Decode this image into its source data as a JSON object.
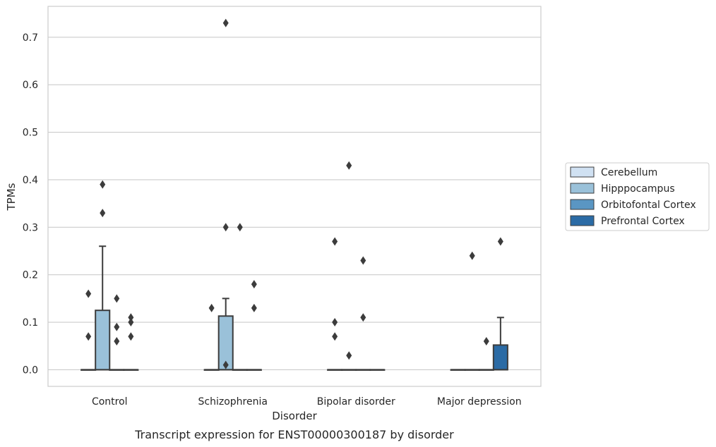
{
  "chart_data": {
    "type": "box",
    "title": "",
    "caption": "Transcript expression for ENST00000300187 by disorder",
    "xlabel": "Disorder",
    "ylabel": "TPMs",
    "ylim": [
      -0.035,
      0.765
    ],
    "yticks": [
      "0.0",
      "0.1",
      "0.2",
      "0.3",
      "0.4",
      "0.5",
      "0.6",
      "0.7"
    ],
    "categories": [
      "Control",
      "Schizophrenia",
      "Bipolar disorder",
      "Major depression"
    ],
    "grid": true,
    "legend_position": "right",
    "series": [
      {
        "name": "Cerebellum",
        "color": "#d0e1f2",
        "boxes": [
          {
            "q1": 0,
            "median": 0,
            "q3": 0,
            "whisker_low": 0,
            "whisker_high": 0,
            "outliers": [
              0.16,
              0.07
            ]
          },
          {
            "q1": 0,
            "median": 0,
            "q3": 0,
            "whisker_low": 0,
            "whisker_high": 0,
            "outliers": [
              0.13
            ]
          },
          {
            "q1": 0,
            "median": 0,
            "q3": 0,
            "whisker_low": 0,
            "whisker_high": 0,
            "outliers": [
              0.27,
              0.1,
              0.07
            ]
          },
          {
            "q1": 0,
            "median": 0,
            "q3": 0,
            "whisker_low": 0,
            "whisker_high": 0,
            "outliers": []
          }
        ]
      },
      {
        "name": "Hipppocampus",
        "color": "#9ac1d9",
        "boxes": [
          {
            "q1": 0,
            "median": 0,
            "q3": 0.125,
            "whisker_low": 0,
            "whisker_high": 0.26,
            "outliers": [
              0.39,
              0.33
            ]
          },
          {
            "q1": 0,
            "median": 0,
            "q3": 0.113,
            "whisker_low": 0,
            "whisker_high": 0.15,
            "outliers": [
              0.73,
              0.3,
              0.01
            ]
          },
          {
            "q1": 0,
            "median": 0,
            "q3": 0,
            "whisker_low": 0,
            "whisker_high": 0,
            "outliers": [
              0.43,
              0.03
            ]
          },
          {
            "q1": 0,
            "median": 0,
            "q3": 0,
            "whisker_low": 0,
            "whisker_high": 0,
            "outliers": [
              0.24
            ]
          }
        ]
      },
      {
        "name": "Orbitofontal Cortex",
        "color": "#5a96c3",
        "boxes": [
          {
            "q1": 0,
            "median": 0,
            "q3": 0,
            "whisker_low": 0,
            "whisker_high": 0,
            "outliers": [
              0.15,
              0.09,
              0.06
            ]
          },
          {
            "q1": 0,
            "median": 0,
            "q3": 0,
            "whisker_low": 0,
            "whisker_high": 0,
            "outliers": [
              0.3
            ]
          },
          {
            "q1": 0,
            "median": 0,
            "q3": 0,
            "whisker_low": 0,
            "whisker_high": 0,
            "outliers": [
              0.23,
              0.11
            ]
          },
          {
            "q1": 0,
            "median": 0,
            "q3": 0,
            "whisker_low": 0,
            "whisker_high": 0,
            "outliers": [
              0.06
            ]
          }
        ]
      },
      {
        "name": "Prefrontal Cortex",
        "color": "#2b6ba5",
        "boxes": [
          {
            "q1": 0,
            "median": 0,
            "q3": 0,
            "whisker_low": 0,
            "whisker_high": 0,
            "outliers": [
              0.11,
              0.1,
              0.07
            ]
          },
          {
            "q1": 0,
            "median": 0,
            "q3": 0,
            "whisker_low": 0,
            "whisker_high": 0,
            "outliers": [
              0.18,
              0.13
            ]
          },
          {
            "q1": 0,
            "median": 0,
            "q3": 0,
            "whisker_low": 0,
            "whisker_high": 0,
            "outliers": []
          },
          {
            "q1": 0,
            "median": 0,
            "q3": 0.052,
            "whisker_low": 0,
            "whisker_high": 0.11,
            "outliers": [
              0.27
            ]
          }
        ]
      }
    ]
  }
}
